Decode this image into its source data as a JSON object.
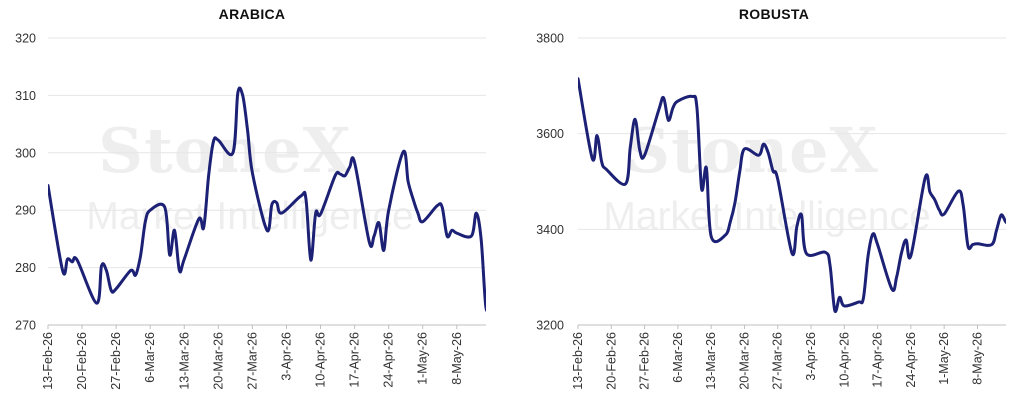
{
  "brand_color": "#1c2175",
  "watermark": {
    "brand": "StoneX",
    "product": "Market Intelligence"
  },
  "chart_data": [
    {
      "type": "line",
      "title": "ARABICA",
      "xlabel": "",
      "ylabel": "",
      "ylim": [
        270,
        320
      ],
      "yticks": [
        270,
        280,
        290,
        300,
        310,
        320
      ],
      "xlim": [
        "2026-02-13",
        "2026-05-14"
      ],
      "xtick_labels": [
        "13-Feb-26",
        "20-Feb-26",
        "27-Feb-26",
        "6-Mar-26",
        "13-Mar-26",
        "20-Mar-26",
        "27-Mar-26",
        "3-Apr-26",
        "10-Apr-26",
        "17-Apr-26",
        "24-Apr-26",
        "1-May-26",
        "8-May-26"
      ],
      "xtick_dates": [
        "2026-02-13",
        "2026-02-20",
        "2026-02-27",
        "2026-03-06",
        "2026-03-13",
        "2026-03-20",
        "2026-03-27",
        "2026-04-03",
        "2026-04-10",
        "2026-04-17",
        "2026-04-24",
        "2026-05-01",
        "2026-05-08"
      ],
      "grid": true,
      "series": [
        {
          "color": "#1c2175",
          "points": [
            [
              "2026-02-13",
              294.3
            ],
            [
              "2026-02-16",
              279.5
            ],
            [
              "2026-02-17",
              281.5
            ],
            [
              "2026-02-18",
              281.0
            ],
            [
              "2026-02-19",
              281.3
            ],
            [
              "2026-02-23",
              273.8
            ],
            [
              "2026-02-24",
              280.3
            ],
            [
              "2026-02-25",
              279.5
            ],
            [
              "2026-02-26",
              276.0
            ],
            [
              "2026-02-27",
              276.3
            ],
            [
              "2026-03-02",
              279.5
            ],
            [
              "2026-03-03",
              278.7
            ],
            [
              "2026-03-04",
              282.0
            ],
            [
              "2026-03-05",
              288.0
            ],
            [
              "2026-03-06",
              290.0
            ],
            [
              "2026-03-09",
              290.5
            ],
            [
              "2026-03-10",
              282.2
            ],
            [
              "2026-03-11",
              286.5
            ],
            [
              "2026-03-12",
              279.5
            ],
            [
              "2026-03-13",
              281.5
            ],
            [
              "2026-03-16",
              288.5
            ],
            [
              "2026-03-17",
              287.0
            ],
            [
              "2026-03-18",
              296.0
            ],
            [
              "2026-03-19",
              302.0
            ],
            [
              "2026-03-20",
              302.2
            ],
            [
              "2026-03-23",
              300.0
            ],
            [
              "2026-03-24",
              310.4
            ],
            [
              "2026-03-25",
              310.0
            ],
            [
              "2026-03-26",
              304.0
            ],
            [
              "2026-03-27",
              296.5
            ],
            [
              "2026-03-30",
              286.5
            ],
            [
              "2026-03-31",
              291.0
            ],
            [
              "2026-04-01",
              291.3
            ],
            [
              "2026-04-02",
              289.5
            ],
            [
              "2026-04-06",
              292.5
            ],
            [
              "2026-04-07",
              292.0
            ],
            [
              "2026-04-08",
              281.3
            ],
            [
              "2026-04-09",
              289.5
            ],
            [
              "2026-04-10",
              289.3
            ],
            [
              "2026-04-13",
              296.0
            ],
            [
              "2026-04-14",
              296.3
            ],
            [
              "2026-04-15",
              296.0
            ],
            [
              "2026-04-16",
              297.5
            ],
            [
              "2026-04-17",
              298.3
            ],
            [
              "2026-04-20",
              284.5
            ],
            [
              "2026-04-21",
              285.5
            ],
            [
              "2026-04-22",
              287.8
            ],
            [
              "2026-04-23",
              283.0
            ],
            [
              "2026-04-24",
              290.0
            ],
            [
              "2026-04-27",
              300.2
            ],
            [
              "2026-04-28",
              295.0
            ],
            [
              "2026-04-29",
              292.0
            ],
            [
              "2026-04-30",
              289.5
            ],
            [
              "2026-05-01",
              288.0
            ],
            [
              "2026-05-04",
              290.8
            ],
            [
              "2026-05-05",
              290.5
            ],
            [
              "2026-05-06",
              285.5
            ],
            [
              "2026-05-07",
              286.5
            ],
            [
              "2026-05-08",
              286.0
            ],
            [
              "2026-05-11",
              285.5
            ],
            [
              "2026-05-12",
              289.5
            ],
            [
              "2026-05-13",
              285.0
            ],
            [
              "2026-05-14",
              273.0
            ],
            [
              "2026-05-15",
              274.8
            ],
            [
              "2026-05-18",
              274.0
            ],
            [
              "2026-05-19",
              273.0
            ]
          ]
        }
      ]
    },
    {
      "type": "line",
      "title": "ROBUSTA",
      "xlabel": "",
      "ylabel": "",
      "ylim": [
        3200,
        3800
      ],
      "yticks": [
        3200,
        3400,
        3600,
        3800
      ],
      "xlim": [
        "2026-02-13",
        "2026-05-14"
      ],
      "xtick_labels": [
        "13-Feb-26",
        "20-Feb-26",
        "27-Feb-26",
        "6-Mar-26",
        "13-Mar-26",
        "20-Mar-26",
        "27-Mar-26",
        "3-Apr-26",
        "10-Apr-26",
        "17-Apr-26",
        "24-Apr-26",
        "1-May-26",
        "8-May-26"
      ],
      "xtick_dates": [
        "2026-02-13",
        "2026-02-20",
        "2026-02-27",
        "2026-03-06",
        "2026-03-13",
        "2026-03-20",
        "2026-03-27",
        "2026-04-03",
        "2026-04-10",
        "2026-04-17",
        "2026-04-24",
        "2026-05-01",
        "2026-05-08"
      ],
      "grid": true,
      "series": [
        {
          "color": "#1c2175",
          "points": [
            [
              "2026-02-13",
              3715
            ],
            [
              "2026-02-16",
              3548
            ],
            [
              "2026-02-17",
              3596
            ],
            [
              "2026-02-18",
              3540
            ],
            [
              "2026-02-19",
              3525
            ],
            [
              "2026-02-23",
              3495
            ],
            [
              "2026-02-24",
              3572
            ],
            [
              "2026-02-25",
              3630
            ],
            [
              "2026-02-26",
              3565
            ],
            [
              "2026-02-27",
              3555
            ],
            [
              "2026-03-02",
              3650
            ],
            [
              "2026-03-03",
              3675
            ],
            [
              "2026-03-04",
              3628
            ],
            [
              "2026-03-05",
              3655
            ],
            [
              "2026-03-06",
              3668
            ],
            [
              "2026-03-09",
              3678
            ],
            [
              "2026-03-10",
              3655
            ],
            [
              "2026-03-11",
              3485
            ],
            [
              "2026-03-12",
              3528
            ],
            [
              "2026-03-13",
              3385
            ],
            [
              "2026-03-16",
              3388
            ],
            [
              "2026-03-17",
              3415
            ],
            [
              "2026-03-18",
              3455
            ],
            [
              "2026-03-19",
              3520
            ],
            [
              "2026-03-20",
              3568
            ],
            [
              "2026-03-23",
              3555
            ],
            [
              "2026-03-24",
              3578
            ],
            [
              "2026-03-25",
              3560
            ],
            [
              "2026-03-26",
              3522
            ],
            [
              "2026-03-27",
              3505
            ],
            [
              "2026-03-30",
              3350
            ],
            [
              "2026-03-31",
              3405
            ],
            [
              "2026-04-01",
              3430
            ],
            [
              "2026-04-02",
              3350
            ],
            [
              "2026-04-06",
              3352
            ],
            [
              "2026-04-07",
              3325
            ],
            [
              "2026-04-08",
              3230
            ],
            [
              "2026-04-09",
              3258
            ],
            [
              "2026-04-10",
              3240
            ],
            [
              "2026-04-13",
              3248
            ],
            [
              "2026-04-14",
              3255
            ],
            [
              "2026-04-15",
              3345
            ],
            [
              "2026-04-16",
              3390
            ],
            [
              "2026-04-17",
              3368
            ],
            [
              "2026-04-20",
              3275
            ],
            [
              "2026-04-21",
              3300
            ],
            [
              "2026-04-22",
              3350
            ],
            [
              "2026-04-23",
              3378
            ],
            [
              "2026-04-24",
              3345
            ],
            [
              "2026-04-27",
              3508
            ],
            [
              "2026-04-28",
              3478
            ],
            [
              "2026-04-29",
              3462
            ],
            [
              "2026-04-30",
              3440
            ],
            [
              "2026-05-01",
              3432
            ],
            [
              "2026-05-04",
              3480
            ],
            [
              "2026-05-05",
              3450
            ],
            [
              "2026-05-06",
              3365
            ],
            [
              "2026-05-07",
              3368
            ],
            [
              "2026-05-08",
              3370
            ],
            [
              "2026-05-11",
              3368
            ],
            [
              "2026-05-12",
              3398
            ],
            [
              "2026-05-13",
              3430
            ],
            [
              "2026-05-14",
              3415
            ],
            [
              "2026-05-15",
              3412
            ],
            [
              "2026-05-18",
              3410
            ],
            [
              "2026-05-19",
              3408
            ]
          ]
        }
      ]
    }
  ]
}
